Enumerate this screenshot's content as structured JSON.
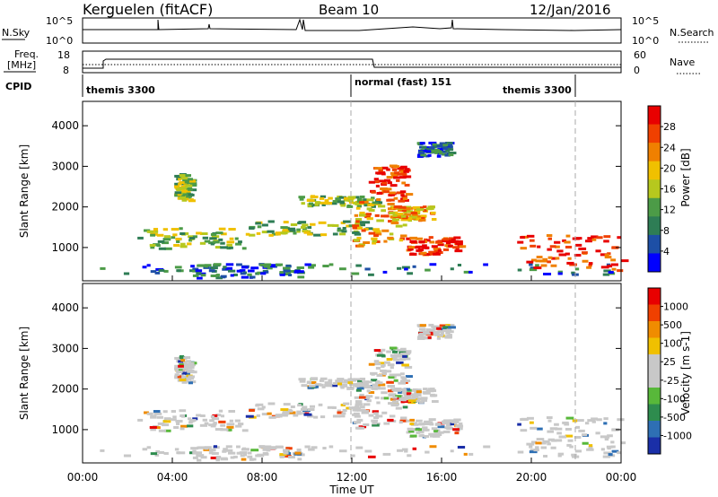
{
  "header": {
    "station": "Kerguelen (fitACF)",
    "beam": "Beam 10",
    "date": "12/Jan/2016"
  },
  "noise_panel": {
    "left_label": "N.Sky",
    "left_ticks": [
      "10^5",
      "10^0"
    ],
    "right_label": "N.Search",
    "right_ticks": [
      "10^5",
      "10^0"
    ]
  },
  "freq_panel": {
    "left_label_1": "Freq.",
    "left_label_2": "[MHz]",
    "left_ticks": [
      "18",
      "8"
    ],
    "right_label": "Nave",
    "right_ticks": [
      "60",
      "0"
    ]
  },
  "cpid": {
    "label": "CPID",
    "segments": [
      "themis 3300",
      "normal (fast) 151",
      "themis 3300"
    ]
  },
  "chart_data": [
    {
      "type": "heatmap",
      "name": "Power",
      "ylabel": "Slant Range [km]",
      "ylim": [
        180,
        4600
      ],
      "yticks": [
        "1000",
        "2000",
        "3000",
        "4000"
      ],
      "colorbar": {
        "label": "Power [dB]",
        "ticks": [
          "4",
          "8",
          "12",
          "16",
          "20",
          "24",
          "28"
        ],
        "colors": [
          "#0000ff",
          "#1d4fa6",
          "#2e7d55",
          "#4c9b47",
          "#b6c81e",
          "#f0c000",
          "#f08000",
          "#f04000",
          "#e80000"
        ]
      },
      "x": [
        "00:00",
        "04:00",
        "08:00",
        "12:00",
        "16:00",
        "20:00",
        "00:00"
      ]
    },
    {
      "type": "heatmap",
      "name": "Velocity",
      "ylabel": "Slant Range [km]",
      "ylim": [
        180,
        4600
      ],
      "yticks": [
        "1000",
        "2000",
        "3000",
        "4000"
      ],
      "colorbar": {
        "label": "Velocity [m s-1]",
        "ticks": [
          "1000",
          "500",
          "100",
          "25",
          "-25",
          "-100",
          "-500",
          "-1000"
        ],
        "colors": [
          "#1a2fa8",
          "#2e6fb4",
          "#2e8c4e",
          "#58b83a",
          "#c8c8c8",
          "#c8c8c8",
          "#f0c000",
          "#f08c00",
          "#f04000",
          "#e80000"
        ]
      },
      "xlabel": "Time UT",
      "x": [
        "00:00",
        "04:00",
        "08:00",
        "12:00",
        "16:00",
        "20:00",
        "00:00"
      ]
    }
  ]
}
